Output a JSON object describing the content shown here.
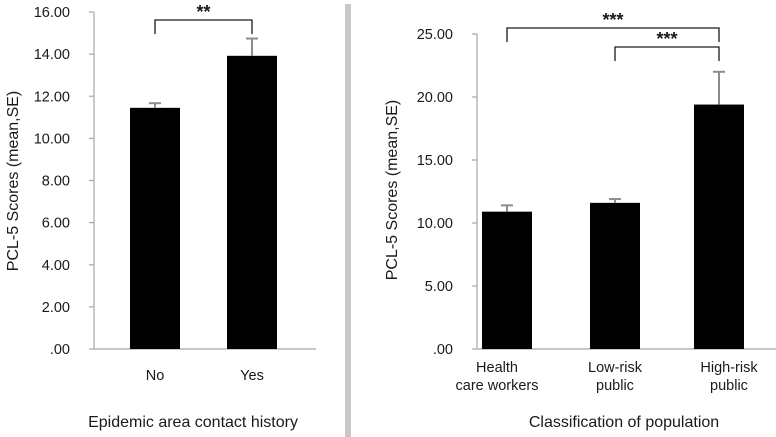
{
  "chart_data": [
    {
      "type": "bar",
      "categories": [
        "No",
        "Yes"
      ],
      "values": [
        11.45,
        13.92
      ],
      "errors": [
        0.22,
        0.82
      ],
      "ylabel": "PCL-5 Scores (mean,SE)",
      "xlabel": "Epidemic area contact history",
      "ylim": [
        0,
        16
      ],
      "yticks": [
        ".00",
        "2.00",
        "4.00",
        "6.00",
        "8.00",
        "10.00",
        "12.00",
        "14.00",
        "16.00"
      ],
      "grid": false,
      "bar_color": "#000000",
      "significance": [
        {
          "from": 0,
          "to": 1,
          "label": "**"
        }
      ]
    },
    {
      "type": "bar",
      "categories": [
        [
          "Health",
          "care workers"
        ],
        [
          "Low-risk",
          "public"
        ],
        [
          "High-risk",
          "public"
        ]
      ],
      "values": [
        10.9,
        11.6,
        19.4
      ],
      "errors": [
        0.5,
        0.3,
        2.6
      ],
      "ylabel": "PCL-5 Scores (mean,SE)",
      "xlabel": "Classification of  population",
      "ylim": [
        0,
        25
      ],
      "yticks": [
        ".00",
        "5.00",
        "10.00",
        "15.00",
        "20.00",
        "25.00"
      ],
      "grid": false,
      "bar_color": "#000000",
      "significance": [
        {
          "from": 0,
          "to": 2,
          "label": "***"
        },
        {
          "from": 1,
          "to": 2,
          "label": "***"
        }
      ]
    }
  ],
  "colors": {
    "bar": "#000000",
    "axis": "#a6a6a6",
    "divider": "#c8c8c8",
    "text": "#1a1a1a"
  }
}
